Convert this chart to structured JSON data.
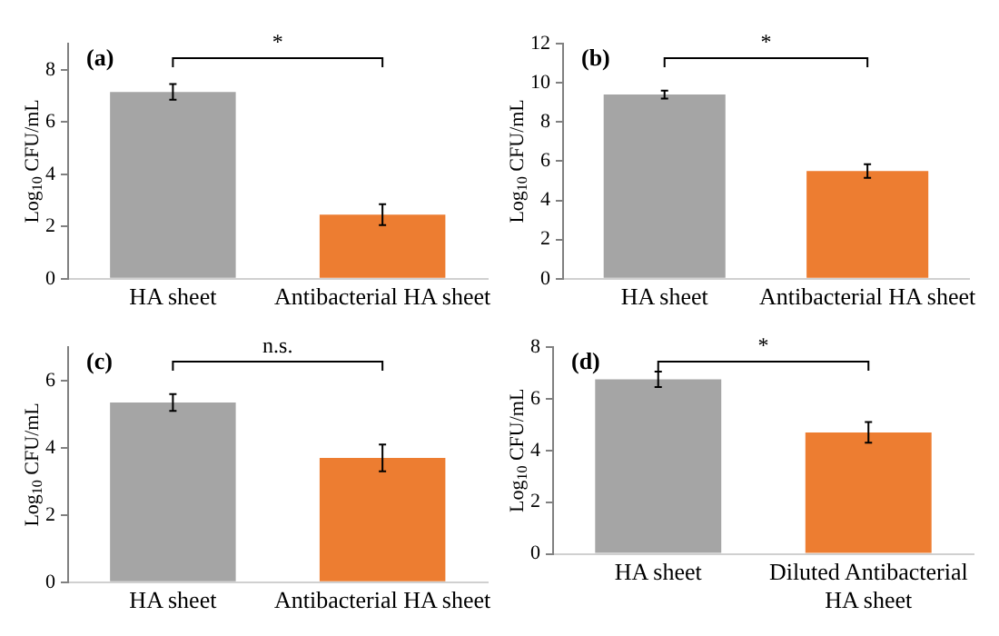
{
  "chart_data": [
    {
      "type": "bar",
      "title": "(a)",
      "ylabel": "Log$_{10}$ CFU/mL",
      "categories": [
        "HA sheet",
        "Antibacterial HA sheet"
      ],
      "values": [
        7.15,
        2.45
      ],
      "errors": [
        0.3,
        0.4
      ],
      "colors": [
        "#a5a5a5",
        "#ed7d31"
      ],
      "ylim": [
        0,
        9
      ],
      "yticks": [
        0,
        2,
        4,
        6,
        8
      ],
      "grid": false,
      "legend": false,
      "annotations": [
        "*"
      ]
    },
    {
      "type": "bar",
      "title": "(b)",
      "ylabel": "Log$_{10}$ CFU/mL",
      "categories": [
        "HA sheet",
        "Antibacterial HA sheet"
      ],
      "values": [
        9.4,
        5.5
      ],
      "errors": [
        0.2,
        0.35
      ],
      "colors": [
        "#a5a5a5",
        "#ed7d31"
      ],
      "ylim": [
        0,
        12
      ],
      "yticks": [
        0,
        2,
        4,
        6,
        8,
        10,
        12
      ],
      "grid": false,
      "legend": false,
      "annotations": [
        "*"
      ]
    },
    {
      "type": "bar",
      "title": "(c)",
      "ylabel": "Log$_{10}$ CFU/mL",
      "categories": [
        "HA sheet",
        "Antibacterial HA sheet"
      ],
      "values": [
        5.35,
        3.7
      ],
      "errors": [
        0.25,
        0.4
      ],
      "colors": [
        "#a5a5a5",
        "#ed7d31"
      ],
      "ylim": [
        0,
        7
      ],
      "yticks": [
        0,
        2,
        4,
        6
      ],
      "grid": false,
      "legend": false,
      "annotations": [
        "n.s."
      ]
    },
    {
      "type": "bar",
      "title": "(d)",
      "ylabel": "Log$_{10}$ CFU/mL",
      "categories": [
        "HA sheet",
        "Diluted Antibacterial HA sheet"
      ],
      "values": [
        6.75,
        4.7
      ],
      "errors": [
        0.3,
        0.4
      ],
      "colors": [
        "#a5a5a5",
        "#ed7d31"
      ],
      "ylim": [
        0,
        8
      ],
      "yticks": [
        0,
        2,
        4,
        6,
        8
      ],
      "grid": false,
      "legend": false,
      "annotations": [
        "*"
      ]
    }
  ]
}
